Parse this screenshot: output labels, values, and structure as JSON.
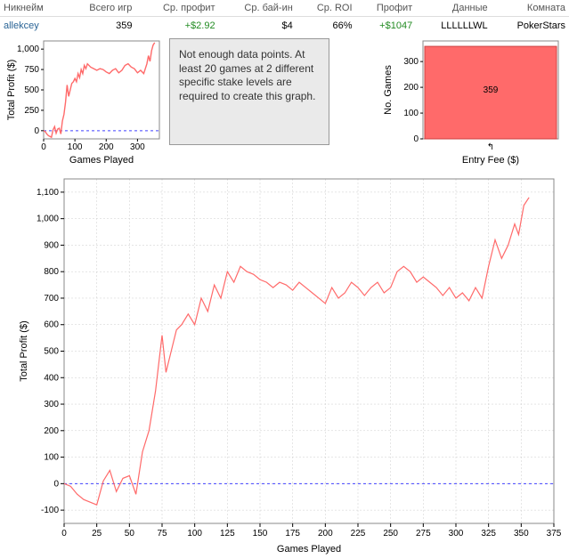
{
  "table": {
    "headers": [
      "Никнейм",
      "Всего игр",
      "Ср. профит",
      "Ср. бай-ин",
      "Ср. ROI",
      "Профит",
      "Данные",
      "Комната"
    ],
    "row": {
      "nickname": "allekcey",
      "total_games": "359",
      "avg_profit": "+$2.92",
      "avg_buyin": "$4",
      "avg_roi": "66%",
      "profit": "+$1047",
      "data": "LLLLLLWL",
      "room": "PokerStars"
    }
  },
  "msg_box": "Not enough data points. At least 20 games at 2 different specific stake levels are required to create this graph.",
  "mini_line": {
    "type": "line",
    "title": "Total Profit ($)",
    "xlabel": "Games Played",
    "xlim": [
      0,
      370
    ],
    "xticks": [
      0,
      100,
      200,
      300
    ],
    "ylim": [
      -100,
      1100
    ],
    "yticks": [
      0,
      250,
      500,
      750,
      1000
    ],
    "line_color": "#ff6a6a",
    "zero_line_color": "#4040ff",
    "background": "#ffffff",
    "border_color": "#888888",
    "series": [
      [
        0,
        0
      ],
      [
        5,
        -10
      ],
      [
        10,
        -40
      ],
      [
        15,
        -60
      ],
      [
        20,
        -70
      ],
      [
        25,
        -80
      ],
      [
        30,
        10
      ],
      [
        35,
        50
      ],
      [
        40,
        -30
      ],
      [
        45,
        20
      ],
      [
        50,
        30
      ],
      [
        55,
        -40
      ],
      [
        60,
        120
      ],
      [
        65,
        200
      ],
      [
        70,
        350
      ],
      [
        75,
        560
      ],
      [
        80,
        420
      ],
      [
        85,
        500
      ],
      [
        90,
        580
      ],
      [
        95,
        600
      ],
      [
        100,
        640
      ],
      [
        105,
        600
      ],
      [
        110,
        700
      ],
      [
        115,
        650
      ],
      [
        120,
        750
      ],
      [
        125,
        700
      ],
      [
        130,
        800
      ],
      [
        135,
        760
      ],
      [
        140,
        820
      ],
      [
        150,
        780
      ],
      [
        160,
        760
      ],
      [
        170,
        740
      ],
      [
        180,
        760
      ],
      [
        190,
        750
      ],
      [
        200,
        720
      ],
      [
        210,
        700
      ],
      [
        220,
        740
      ],
      [
        230,
        760
      ],
      [
        240,
        710
      ],
      [
        250,
        740
      ],
      [
        260,
        800
      ],
      [
        270,
        820
      ],
      [
        280,
        780
      ],
      [
        290,
        760
      ],
      [
        300,
        710
      ],
      [
        310,
        740
      ],
      [
        320,
        700
      ],
      [
        330,
        820
      ],
      [
        335,
        920
      ],
      [
        340,
        850
      ],
      [
        345,
        980
      ],
      [
        350,
        1050
      ],
      [
        355,
        1080
      ]
    ]
  },
  "mini_bar": {
    "type": "bar",
    "title": "No. Games",
    "xlabel": "Entry Fee ($)",
    "ylim": [
      0,
      380
    ],
    "yticks": [
      0,
      100,
      200,
      300
    ],
    "bar_color": "#ff6a6a",
    "bar_border": "#cc4040",
    "background": "#ffffff",
    "value_label": "359",
    "xtick_label": "↰",
    "border_color": "#888888"
  },
  "big_line": {
    "type": "line",
    "ylabel": "Total Profit ($)",
    "xlabel": "Games Played",
    "xlim": [
      0,
      375
    ],
    "xticks": [
      0,
      25,
      50,
      75,
      100,
      125,
      150,
      175,
      200,
      225,
      250,
      275,
      300,
      325,
      350,
      375
    ],
    "ylim": [
      -150,
      1150
    ],
    "yticks": [
      -100,
      0,
      100,
      200,
      300,
      400,
      500,
      600,
      700,
      800,
      900,
      1000,
      1100
    ],
    "line_color": "#ff6a6a",
    "zero_line_color": "#4040ff",
    "grid_color": "#cccccc",
    "background": "#ffffff",
    "border_color": "#888888",
    "series": [
      [
        0,
        0
      ],
      [
        5,
        -10
      ],
      [
        10,
        -40
      ],
      [
        15,
        -60
      ],
      [
        20,
        -70
      ],
      [
        25,
        -80
      ],
      [
        30,
        10
      ],
      [
        35,
        50
      ],
      [
        40,
        -30
      ],
      [
        45,
        20
      ],
      [
        50,
        30
      ],
      [
        55,
        -40
      ],
      [
        60,
        120
      ],
      [
        65,
        200
      ],
      [
        70,
        350
      ],
      [
        75,
        560
      ],
      [
        78,
        420
      ],
      [
        82,
        500
      ],
      [
        86,
        580
      ],
      [
        90,
        600
      ],
      [
        95,
        640
      ],
      [
        100,
        600
      ],
      [
        105,
        700
      ],
      [
        110,
        650
      ],
      [
        115,
        750
      ],
      [
        120,
        700
      ],
      [
        125,
        800
      ],
      [
        130,
        760
      ],
      [
        135,
        820
      ],
      [
        140,
        800
      ],
      [
        145,
        790
      ],
      [
        150,
        770
      ],
      [
        155,
        760
      ],
      [
        160,
        740
      ],
      [
        165,
        760
      ],
      [
        170,
        750
      ],
      [
        175,
        730
      ],
      [
        180,
        760
      ],
      [
        185,
        740
      ],
      [
        190,
        720
      ],
      [
        195,
        700
      ],
      [
        200,
        680
      ],
      [
        205,
        740
      ],
      [
        210,
        700
      ],
      [
        215,
        720
      ],
      [
        220,
        760
      ],
      [
        225,
        740
      ],
      [
        230,
        710
      ],
      [
        235,
        740
      ],
      [
        240,
        760
      ],
      [
        245,
        720
      ],
      [
        250,
        740
      ],
      [
        255,
        800
      ],
      [
        260,
        820
      ],
      [
        265,
        800
      ],
      [
        270,
        760
      ],
      [
        275,
        780
      ],
      [
        280,
        760
      ],
      [
        285,
        740
      ],
      [
        290,
        710
      ],
      [
        295,
        740
      ],
      [
        300,
        700
      ],
      [
        305,
        720
      ],
      [
        310,
        690
      ],
      [
        315,
        740
      ],
      [
        320,
        700
      ],
      [
        325,
        820
      ],
      [
        330,
        920
      ],
      [
        335,
        850
      ],
      [
        340,
        900
      ],
      [
        345,
        980
      ],
      [
        348,
        940
      ],
      [
        352,
        1050
      ],
      [
        356,
        1080
      ]
    ]
  }
}
